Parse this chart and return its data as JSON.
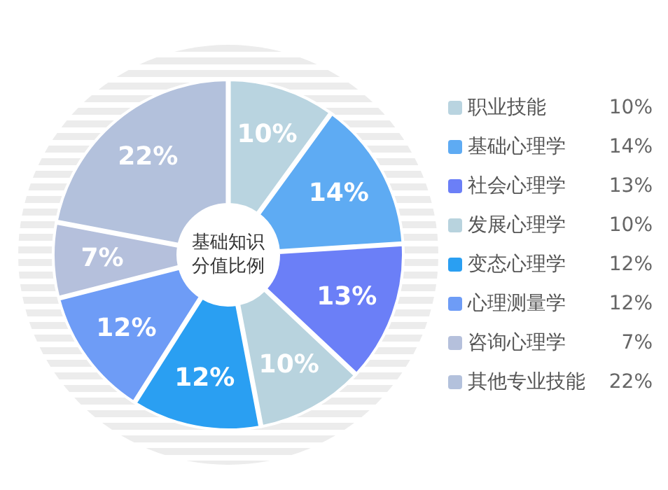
{
  "chart_data": {
    "type": "donut",
    "title": "基础知识分值比例",
    "categories": [
      "职业技能",
      "基础心理学",
      "社会心理学",
      "发展心理学",
      "变态心理学",
      "心理测量学",
      "咨询心理学",
      "其他专业技能"
    ],
    "values": [
      10,
      14,
      13,
      10,
      12,
      12,
      7,
      22
    ],
    "value_labels": [
      "10%",
      "14%",
      "13%",
      "10%",
      "12%",
      "12%",
      "7%",
      "22%"
    ],
    "colors": [
      "#b9d4e0",
      "#5eabf3",
      "#6b7ff7",
      "#b8d3de",
      "#2a9ff2",
      "#6e9cf6",
      "#b5c0dc",
      "#b3c1dc"
    ],
    "legend": "right"
  }
}
